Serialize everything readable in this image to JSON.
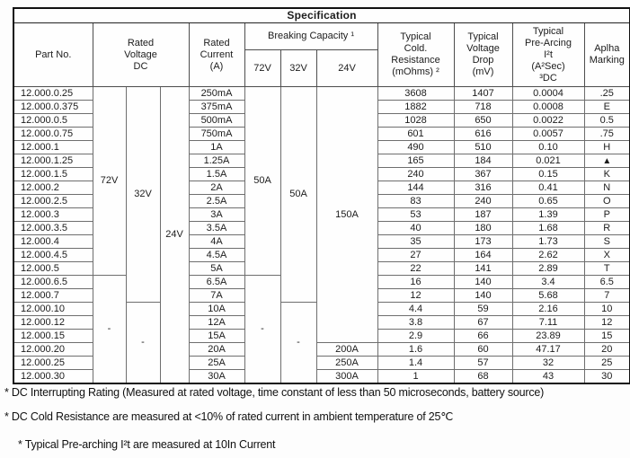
{
  "title": "Specification",
  "table": {
    "headers": {
      "part_no": "Part No.",
      "rated_voltage": "Rated\nVoltage\nDC",
      "rated_current": "Rated\nCurrent\n(A)",
      "breaking_capacity": "Breaking Capacity ¹",
      "breaking_sub": [
        "72V",
        "32V",
        "24V"
      ],
      "cold_resistance": "Typical\nCold.\nResistance\n(mOhms) ²",
      "voltage_drop": "Typical\nVoltage\nDrop\n(mV)",
      "pre_arcing": "Typical\nPre-Arcing\nI²t\n(A²Sec)\n³DC",
      "alpha_marking": "Aplha\nMarking"
    },
    "voltage_columns": [
      {
        "cells": [
          {
            "label": "72V",
            "rows": 14
          },
          {
            "label": "-",
            "rows": 8
          }
        ]
      },
      {
        "cells": [
          {
            "label": "32V",
            "rows": 16
          },
          {
            "label": "-",
            "rows": 6
          }
        ]
      },
      {
        "cells": [
          {
            "label": "24V",
            "rows": 22
          }
        ]
      }
    ],
    "breaking_columns": [
      {
        "cells": [
          {
            "label": "50A",
            "rows": 14
          },
          {
            "label": "-",
            "rows": 8
          }
        ]
      },
      {
        "cells": [
          {
            "label": "50A",
            "rows": 16
          },
          {
            "label": "-",
            "rows": 6
          }
        ]
      },
      {
        "cells": [
          {
            "label": "150A",
            "rows": 19
          },
          {
            "label": "200A",
            "rows": 1
          },
          {
            "label": "250A",
            "rows": 1
          },
          {
            "label": "300A",
            "rows": 1
          }
        ]
      }
    ],
    "rows": [
      {
        "part": "12.000.0.25",
        "current": "250mA",
        "resistance": "3608",
        "drop": "1407",
        "i2t": "0.0004",
        "alpha": ".25"
      },
      {
        "part": "12.000.0.375",
        "current": "375mA",
        "resistance": "1882",
        "drop": "718",
        "i2t": "0.0008",
        "alpha": "E"
      },
      {
        "part": "12.000.0.5",
        "current": "500mA",
        "resistance": "1028",
        "drop": "650",
        "i2t": "0.0022",
        "alpha": "0.5"
      },
      {
        "part": "12.000.0.75",
        "current": "750mA",
        "resistance": "601",
        "drop": "616",
        "i2t": "0.0057",
        "alpha": ".75"
      },
      {
        "part": "12.000.1",
        "current": "1A",
        "resistance": "490",
        "drop": "510",
        "i2t": "0.10",
        "alpha": "H"
      },
      {
        "part": "12.000.1.25",
        "current": "1.25A",
        "resistance": "165",
        "drop": "184",
        "i2t": "0.021",
        "alpha": "▲"
      },
      {
        "part": "12.000.1.5",
        "current": "1.5A",
        "resistance": "240",
        "drop": "367",
        "i2t": "0.15",
        "alpha": "K"
      },
      {
        "part": "12.000.2",
        "current": "2A",
        "resistance": "144",
        "drop": "316",
        "i2t": "0.41",
        "alpha": "N"
      },
      {
        "part": "12.000.2.5",
        "current": "2.5A",
        "resistance": "83",
        "drop": "240",
        "i2t": "0.65",
        "alpha": "O"
      },
      {
        "part": "12.000.3",
        "current": "3A",
        "resistance": "53",
        "drop": "187",
        "i2t": "1.39",
        "alpha": "P"
      },
      {
        "part": "12.000.3.5",
        "current": "3.5A",
        "resistance": "40",
        "drop": "180",
        "i2t": "1.68",
        "alpha": "R"
      },
      {
        "part": "12.000.4",
        "current": "4A",
        "resistance": "35",
        "drop": "173",
        "i2t": "1.73",
        "alpha": "S"
      },
      {
        "part": "12.000.4.5",
        "current": "4.5A",
        "resistance": "27",
        "drop": "164",
        "i2t": "2.62",
        "alpha": "X"
      },
      {
        "part": "12.000.5",
        "current": "5A",
        "resistance": "22",
        "drop": "141",
        "i2t": "2.89",
        "alpha": "T"
      },
      {
        "part": "12.000.6.5",
        "current": "6.5A",
        "resistance": "16",
        "drop": "140",
        "i2t": "3.4",
        "alpha": "6.5"
      },
      {
        "part": "12.000.7",
        "current": "7A",
        "resistance": "12",
        "drop": "140",
        "i2t": "5.68",
        "alpha": "7"
      },
      {
        "part": "12.000.10",
        "current": "10A",
        "resistance": "4.4",
        "drop": "59",
        "i2t": "2.16",
        "alpha": "10"
      },
      {
        "part": "12.000.12",
        "current": "12A",
        "resistance": "3.8",
        "drop": "67",
        "i2t": "7.11",
        "alpha": "12"
      },
      {
        "part": "12.000.15",
        "current": "15A",
        "resistance": "2.9",
        "drop": "66",
        "i2t": "23.89",
        "alpha": "15"
      },
      {
        "part": "12.000.20",
        "current": "20A",
        "resistance": "1.6",
        "drop": "60",
        "i2t": "47.17",
        "alpha": "20"
      },
      {
        "part": "12.000.25",
        "current": "25A",
        "resistance": "1.4",
        "drop": "57",
        "i2t": "32",
        "alpha": "25"
      },
      {
        "part": "12.000.30",
        "current": "30A",
        "resistance": "1",
        "drop": "68",
        "i2t": "43",
        "alpha": "30"
      }
    ]
  },
  "footnotes": [
    "* DC Interrupting Rating (Measured at rated voltage, time constant of less than 50 microseconds, battery source)",
    "* DC Cold Resistance are measured at <10% of rated current in ambient temperature of 25℃",
    "* Typical Pre-arching I²t are measured at 10In Current"
  ]
}
